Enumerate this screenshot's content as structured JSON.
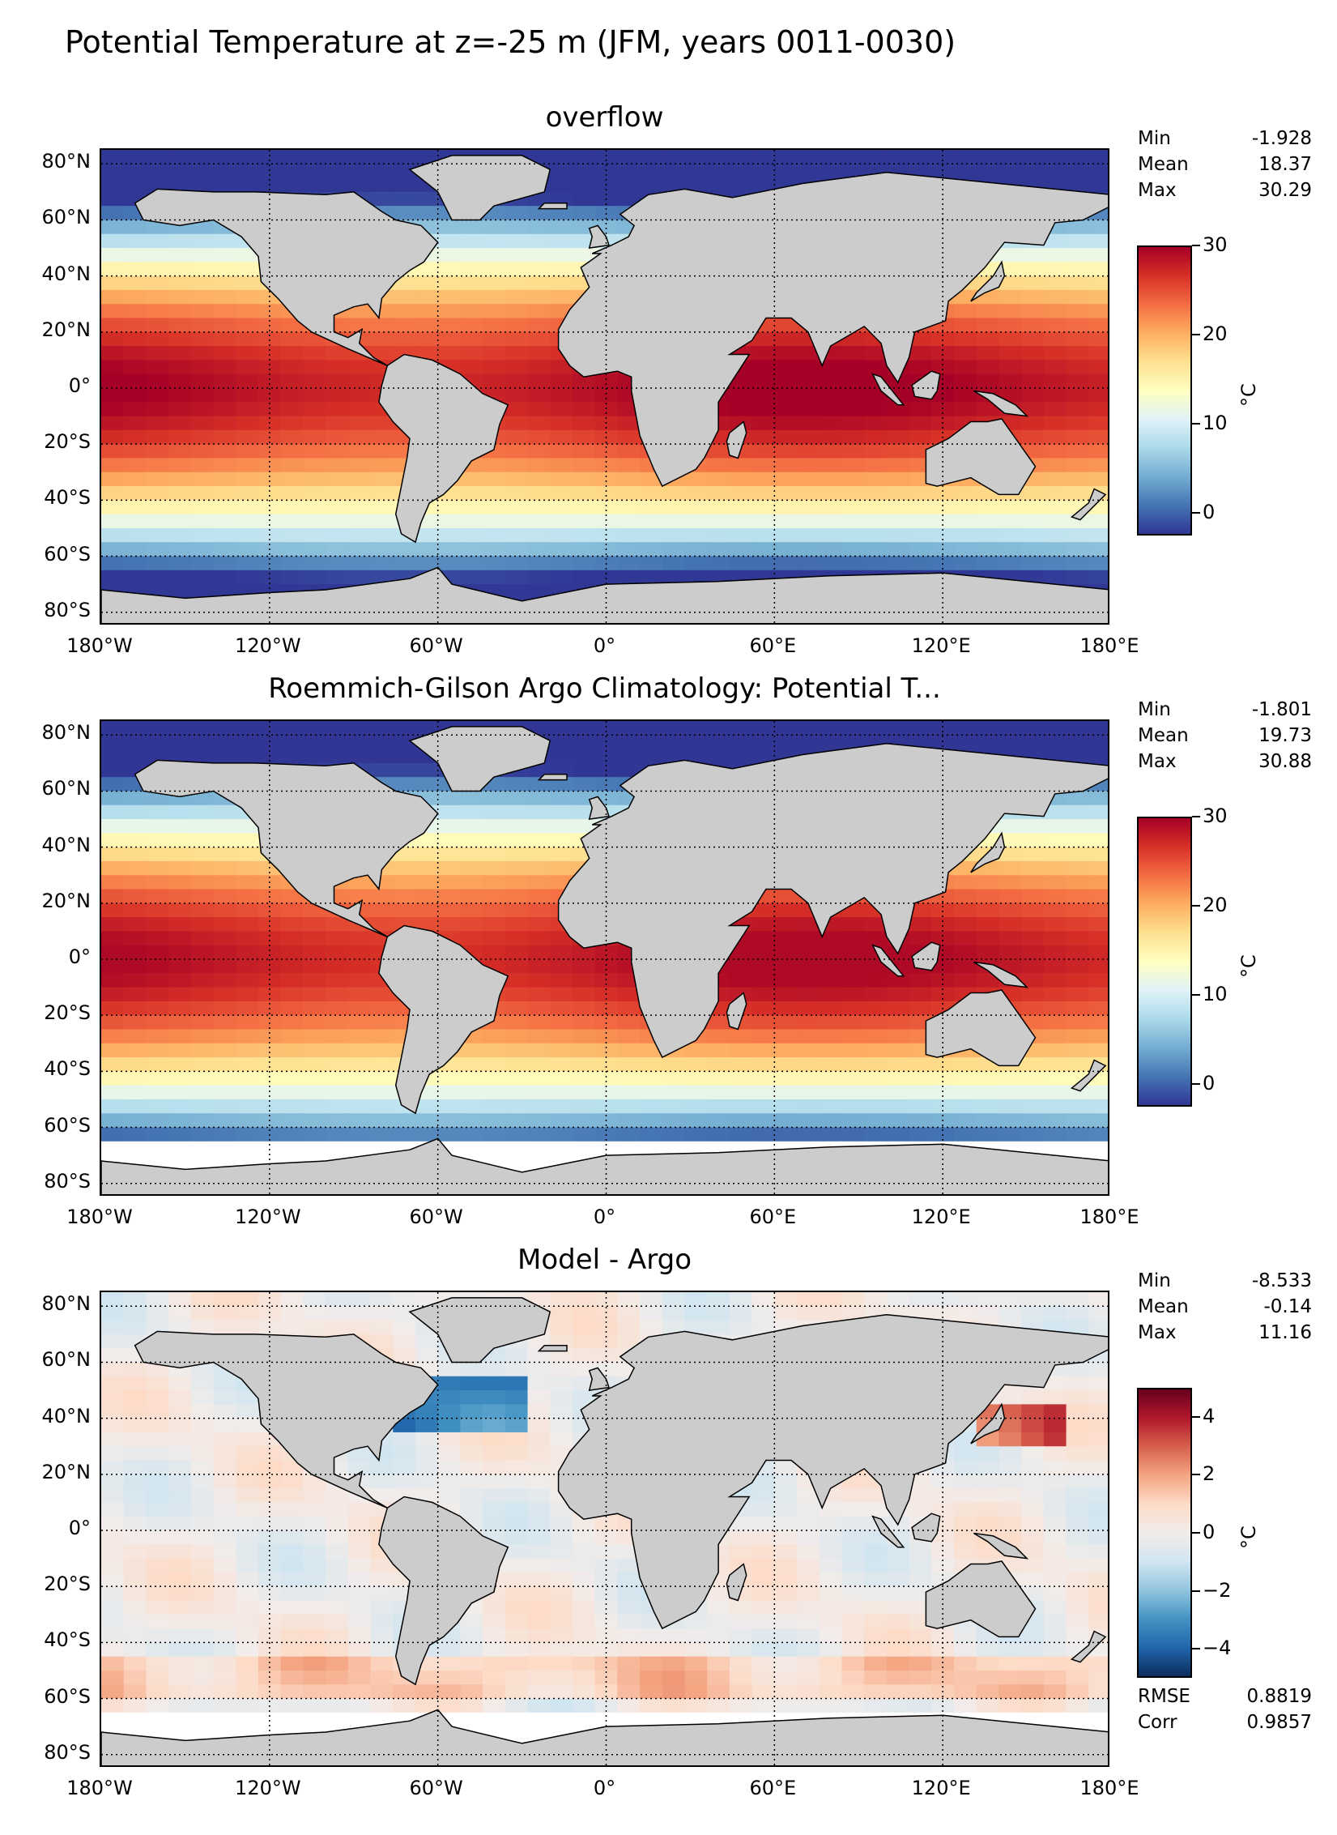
{
  "suptitle": "Potential Temperature at z=-25 m (JFM, years 0011-0030)",
  "panels": [
    {
      "title": "overflow",
      "stats": [
        {
          "label": "Min",
          "value": "-1.928"
        },
        {
          "label": "Mean",
          "value": "18.37"
        },
        {
          "label": "Max",
          "value": "30.29"
        }
      ],
      "colorbar": {
        "ticks": [
          "0",
          "10",
          "20",
          "30"
        ],
        "unit": "°C",
        "colormap": "RdYlBu_r"
      }
    },
    {
      "title": "Roemmich-Gilson Argo Climatology: Potential T...",
      "stats": [
        {
          "label": "Min",
          "value": "-1.801"
        },
        {
          "label": "Mean",
          "value": "19.73"
        },
        {
          "label": "Max",
          "value": "30.88"
        }
      ],
      "colorbar": {
        "ticks": [
          "0",
          "10",
          "20",
          "30"
        ],
        "unit": "°C",
        "colormap": "RdYlBu_r"
      }
    },
    {
      "title": "Model - Argo",
      "stats": [
        {
          "label": "Min",
          "value": "-8.533"
        },
        {
          "label": "Mean",
          "value": "-0.14"
        },
        {
          "label": "Max",
          "value": "11.16"
        }
      ],
      "extra_stats": [
        {
          "label": "RMSE",
          "value": "0.8819"
        },
        {
          "label": "Corr",
          "value": "0.9857"
        }
      ],
      "colorbar": {
        "ticks": [
          "4",
          "2",
          "0",
          "−2",
          "−4"
        ],
        "unit": "°C",
        "colormap": "RdBu_r"
      }
    }
  ],
  "axes": {
    "lat_labels": [
      "80°N",
      "60°N",
      "40°N",
      "20°N",
      "0°",
      "20°S",
      "40°S",
      "60°S",
      "80°S"
    ],
    "lon_labels": [
      "180°W",
      "120°W",
      "60°W",
      "0°",
      "60°E",
      "120°E",
      "180°E"
    ]
  },
  "chart_data": [
    {
      "type": "heatmap",
      "title": "overflow",
      "variable": "Potential Temperature",
      "unit": "°C",
      "color_range": [
        -1.928,
        30.29
      ],
      "colorbar_ticks": [
        0,
        10,
        20,
        30
      ],
      "stats": {
        "min": -1.928,
        "mean": 18.37,
        "max": 30.29
      },
      "xlim": [
        -180,
        180
      ],
      "ylim": [
        -85,
        85
      ],
      "grid": true
    },
    {
      "type": "heatmap",
      "title": "Roemmich-Gilson Argo Climatology: Potential T...",
      "variable": "Potential Temperature",
      "unit": "°C",
      "color_range": [
        -1.801,
        30.88
      ],
      "colorbar_ticks": [
        0,
        10,
        20,
        30
      ],
      "stats": {
        "min": -1.801,
        "mean": 19.73,
        "max": 30.88
      },
      "xlim": [
        -180,
        180
      ],
      "ylim": [
        -85,
        85
      ],
      "grid": true
    },
    {
      "type": "heatmap",
      "title": "Model - Argo",
      "variable": "Potential Temperature difference",
      "unit": "°C",
      "color_range": [
        -5,
        5
      ],
      "colorbar_ticks": [
        -4,
        -2,
        0,
        2,
        4
      ],
      "stats": {
        "min": -8.533,
        "mean": -0.14,
        "max": 11.16,
        "rmse": 0.8819,
        "corr": 0.9857
      },
      "xlim": [
        -180,
        180
      ],
      "ylim": [
        -85,
        85
      ],
      "grid": true
    }
  ],
  "colors": {
    "land": "#cccccc",
    "no_data": "#ffffff",
    "warm": "#a50026",
    "cold": "#313695"
  }
}
